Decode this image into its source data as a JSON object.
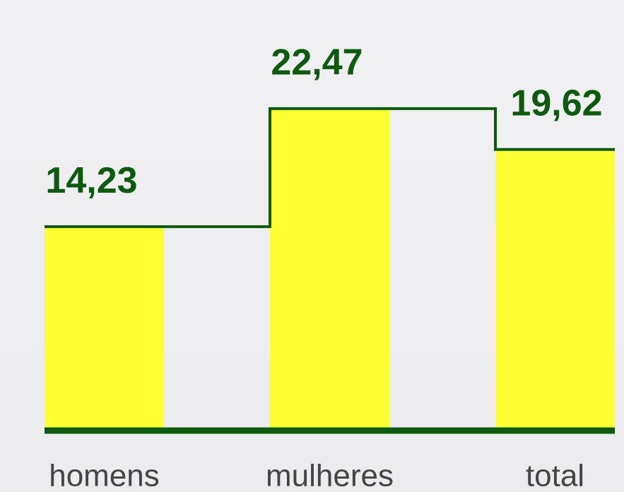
{
  "chart_data": {
    "type": "bar",
    "categories": [
      "homens",
      "mulheres",
      "total"
    ],
    "values": [
      14.23,
      22.47,
      19.62
    ],
    "value_labels": [
      "14,23",
      "22,47",
      "19,62"
    ],
    "color": "#ffff33",
    "line_color": "#0b5a0e",
    "ylim": [
      0,
      30
    ]
  }
}
